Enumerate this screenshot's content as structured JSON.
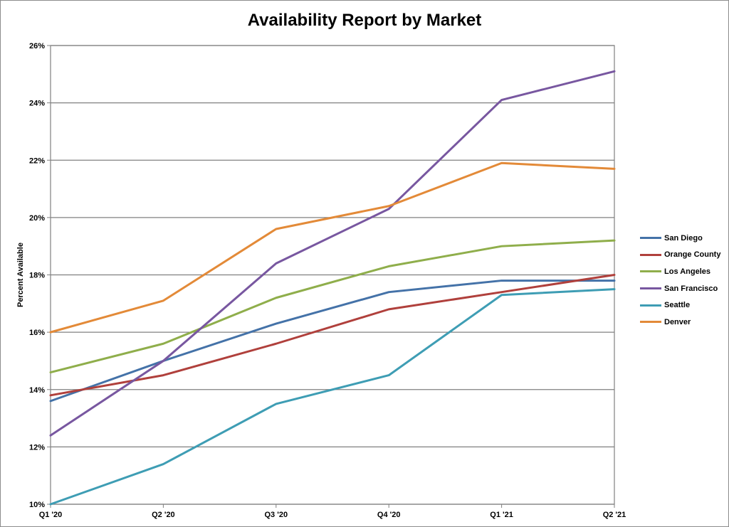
{
  "chart_data": {
    "type": "line",
    "title": "Availability Report by Market",
    "xlabel": "",
    "ylabel": "Percent Available",
    "categories": [
      "Q1 '20",
      "Q2 '20",
      "Q3 '20",
      "Q4 '20",
      "Q1 '21",
      "Q2 '21"
    ],
    "y_ticks": [
      "10%",
      "12%",
      "14%",
      "16%",
      "18%",
      "20%",
      "22%",
      "24%",
      "26%"
    ],
    "ylim": [
      10,
      26
    ],
    "grid": true,
    "legend_position": "right",
    "series": [
      {
        "name": "San Diego",
        "color": "#4472A8",
        "values": [
          13.6,
          15.0,
          16.3,
          17.4,
          17.8,
          17.8
        ]
      },
      {
        "name": "Orange County",
        "color": "#B0403C",
        "values": [
          13.8,
          14.5,
          15.6,
          16.8,
          17.4,
          18.0
        ]
      },
      {
        "name": "Los Angeles",
        "color": "#8FAE4B",
        "values": [
          14.6,
          15.6,
          17.2,
          18.3,
          19.0,
          19.2
        ]
      },
      {
        "name": "San Francisco",
        "color": "#7857A0",
        "values": [
          12.4,
          15.0,
          18.4,
          20.3,
          24.1,
          25.1
        ]
      },
      {
        "name": "Seattle",
        "color": "#3E9DB4",
        "values": [
          10.0,
          11.4,
          13.5,
          14.5,
          17.3,
          17.5
        ]
      },
      {
        "name": "Denver",
        "color": "#E38A38",
        "values": [
          16.0,
          17.1,
          19.6,
          20.4,
          21.9,
          21.7
        ]
      }
    ]
  }
}
